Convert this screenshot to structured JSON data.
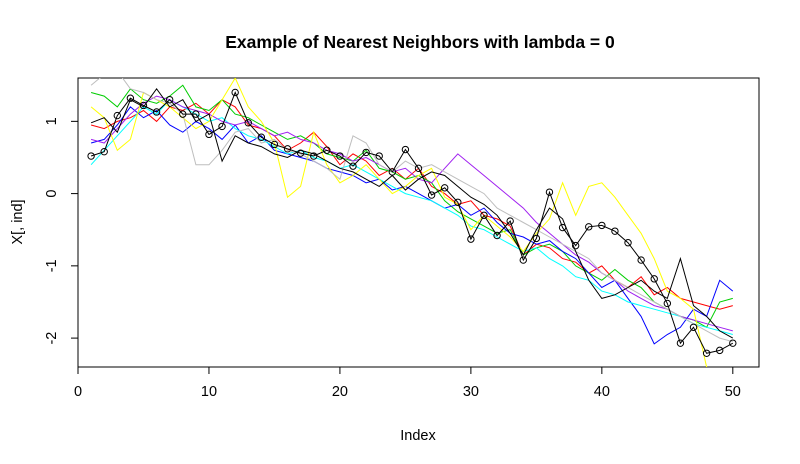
{
  "chart_data": {
    "type": "line",
    "title": "Example of Nearest Neighbors with lambda = 0",
    "xlabel": "Index",
    "ylabel": "X[, ind]",
    "xlim": [
      0,
      52
    ],
    "ylim": [
      -2.4,
      1.6
    ],
    "xticks": [
      0,
      10,
      20,
      30,
      40,
      50
    ],
    "yticks": [
      -2,
      -1,
      0,
      1
    ],
    "x": [
      1,
      2,
      3,
      4,
      5,
      6,
      7,
      8,
      9,
      10,
      11,
      12,
      13,
      14,
      15,
      16,
      17,
      18,
      19,
      20,
      21,
      22,
      23,
      24,
      25,
      26,
      27,
      28,
      29,
      30,
      31,
      32,
      33,
      34,
      35,
      36,
      37,
      38,
      39,
      40,
      41,
      42,
      43,
      44,
      45,
      46,
      47,
      48,
      49,
      50
    ],
    "series": [
      {
        "color": "#000000",
        "markers": true,
        "values": [
          0.52,
          0.58,
          1.08,
          1.32,
          1.22,
          1.13,
          1.3,
          1.1,
          1.1,
          0.82,
          0.93,
          1.4,
          0.98,
          0.78,
          0.68,
          0.62,
          0.56,
          0.52,
          0.6,
          0.52,
          0.38,
          0.57,
          0.52,
          0.3,
          0.61,
          0.35,
          -0.02,
          0.08,
          -0.12,
          -0.63,
          -0.3,
          -0.58,
          -0.38,
          -0.92,
          -0.62,
          0.02,
          -0.47,
          -0.72,
          -0.46,
          -0.44,
          -0.52,
          -0.68,
          -0.92,
          -1.18,
          -1.52,
          -2.07,
          -1.85,
          -2.21,
          -2.17,
          -2.07
        ]
      },
      {
        "color": "#FF0000",
        "markers": false,
        "values": [
          0.95,
          0.9,
          1.0,
          1.05,
          1.15,
          1.0,
          1.2,
          1.15,
          1.25,
          1.1,
          1.3,
          1.2,
          0.95,
          0.9,
          0.8,
          0.6,
          0.7,
          0.85,
          0.65,
          0.4,
          0.55,
          0.45,
          0.25,
          0.35,
          0.2,
          0.35,
          0.1,
          0.0,
          -0.15,
          -0.1,
          -0.3,
          -0.35,
          -0.45,
          -0.85,
          -0.7,
          -0.75,
          -0.9,
          -0.95,
          -1.1,
          -1.0,
          -1.2,
          -1.3,
          -1.15,
          -1.4,
          -1.3,
          -1.45,
          -1.5,
          -1.55,
          -1.6,
          -1.55
        ]
      },
      {
        "color": "#00CD00",
        "markers": false,
        "values": [
          1.4,
          1.35,
          1.2,
          1.45,
          1.3,
          1.25,
          1.35,
          1.5,
          1.2,
          1.15,
          1.3,
          1.1,
          1.05,
          0.95,
          0.85,
          0.75,
          0.8,
          0.7,
          0.55,
          0.5,
          0.45,
          0.6,
          0.35,
          0.3,
          0.2,
          0.25,
          0.15,
          -0.1,
          -0.25,
          -0.35,
          -0.45,
          -0.55,
          -0.5,
          -0.85,
          -0.75,
          -0.7,
          -0.8,
          -1.0,
          -1.1,
          -1.2,
          -1.05,
          -1.2,
          -1.3,
          -1.5,
          -1.6,
          -1.7,
          -1.75,
          -1.85,
          -1.5,
          -1.45
        ]
      },
      {
        "color": "#0000FF",
        "markers": false,
        "values": [
          0.7,
          0.75,
          0.95,
          1.2,
          1.05,
          1.15,
          0.95,
          0.85,
          1.0,
          0.9,
          0.75,
          0.95,
          0.7,
          0.8,
          0.6,
          0.55,
          0.5,
          0.45,
          0.35,
          0.3,
          0.25,
          0.15,
          0.2,
          0.05,
          0.1,
          0.0,
          -0.1,
          -0.2,
          -0.15,
          -0.3,
          -0.2,
          -0.4,
          -0.55,
          -0.6,
          -0.7,
          -0.65,
          -0.8,
          -0.9,
          -1.1,
          -1.3,
          -1.2,
          -1.45,
          -1.7,
          -2.08,
          -1.95,
          -1.85,
          -1.6,
          -1.7,
          -1.2,
          -1.35
        ]
      },
      {
        "color": "#00FFFF",
        "markers": false,
        "values": [
          0.4,
          0.6,
          0.8,
          1.0,
          1.2,
          1.1,
          1.3,
          1.2,
          1.1,
          1.0,
          1.05,
          0.9,
          0.8,
          0.75,
          0.65,
          0.55,
          0.6,
          0.5,
          0.45,
          0.35,
          0.4,
          0.3,
          0.2,
          0.1,
          0.0,
          -0.05,
          -0.1,
          -0.2,
          -0.3,
          -0.45,
          -0.5,
          -0.6,
          -0.7,
          -0.8,
          -0.75,
          -0.9,
          -1.0,
          -1.15,
          -1.2,
          -1.35,
          -1.4,
          -1.5,
          -1.55,
          -1.6,
          -1.65,
          -1.7,
          -1.8,
          -1.85,
          -1.9,
          -1.95
        ]
      },
      {
        "color": "#A020F0",
        "markers": false,
        "values": [
          0.75,
          0.7,
          0.9,
          1.1,
          1.25,
          1.35,
          1.3,
          1.2,
          1.15,
          1.1,
          1.0,
          0.95,
          1.0,
          0.9,
          0.8,
          0.85,
          0.75,
          0.7,
          0.6,
          0.55,
          0.45,
          0.5,
          0.4,
          0.3,
          0.35,
          0.2,
          0.15,
          0.35,
          0.55,
          0.4,
          0.25,
          0.1,
          -0.05,
          -0.2,
          -0.4,
          -0.55,
          -0.7,
          -0.85,
          -0.95,
          -1.1,
          -1.2,
          -1.35,
          -1.45,
          -1.55,
          -1.6,
          -1.7,
          -1.75,
          -1.8,
          -1.85,
          -1.9
        ]
      },
      {
        "color": "#FFFF00",
        "markers": false,
        "values": [
          1.2,
          1.05,
          0.6,
          0.75,
          1.4,
          1.3,
          1.2,
          1.05,
          0.9,
          1.0,
          1.3,
          1.6,
          1.2,
          1.0,
          0.7,
          -0.05,
          0.1,
          0.85,
          0.4,
          0.15,
          0.25,
          0.4,
          0.2,
          0.0,
          0.1,
          0.25,
          0.35,
          -0.05,
          -0.15,
          -0.5,
          -0.3,
          -0.45,
          -0.6,
          -0.8,
          -0.55,
          -0.35,
          0.15,
          -0.3,
          0.1,
          0.15,
          -0.05,
          -0.3,
          -0.55,
          -0.9,
          -1.35,
          -1.45,
          -1.6,
          -2.4,
          -2.6,
          -2.8
        ]
      },
      {
        "color": "#BEBEBE",
        "markers": false,
        "values": [
          1.5,
          1.65,
          1.7,
          1.45,
          1.4,
          1.3,
          1.25,
          1.1,
          0.4,
          0.4,
          0.6,
          0.85,
          0.9,
          0.7,
          0.75,
          0.6,
          0.55,
          0.45,
          0.35,
          0.2,
          0.8,
          0.7,
          0.4,
          0.3,
          0.45,
          0.35,
          0.4,
          0.3,
          0.2,
          0.1,
          0.0,
          -0.2,
          -0.3,
          -0.4,
          -0.5,
          -0.6,
          -0.7,
          -0.8,
          -0.9,
          -1.1,
          -1.2,
          -1.3,
          -1.4,
          -1.5,
          -1.6,
          -1.7,
          -1.8,
          -1.9,
          -2.0,
          -2.05
        ]
      },
      {
        "color": "#000000",
        "markers": false,
        "values": [
          0.98,
          1.05,
          0.85,
          1.3,
          1.2,
          1.45,
          1.2,
          1.3,
          1.0,
          1.1,
          0.45,
          0.8,
          0.7,
          0.65,
          0.55,
          0.5,
          0.6,
          0.55,
          0.45,
          0.35,
          0.3,
          0.2,
          0.1,
          0.25,
          0.05,
          0.2,
          0.3,
          0.25,
          0.1,
          -0.05,
          -0.15,
          -0.3,
          -0.55,
          -0.85,
          -0.5,
          -0.2,
          -0.35,
          -0.8,
          -1.2,
          -1.45,
          -1.4,
          -1.3,
          -1.2,
          -1.35,
          -1.45,
          -0.9,
          -1.55,
          -1.7,
          -1.9,
          -2.0
        ]
      }
    ]
  }
}
